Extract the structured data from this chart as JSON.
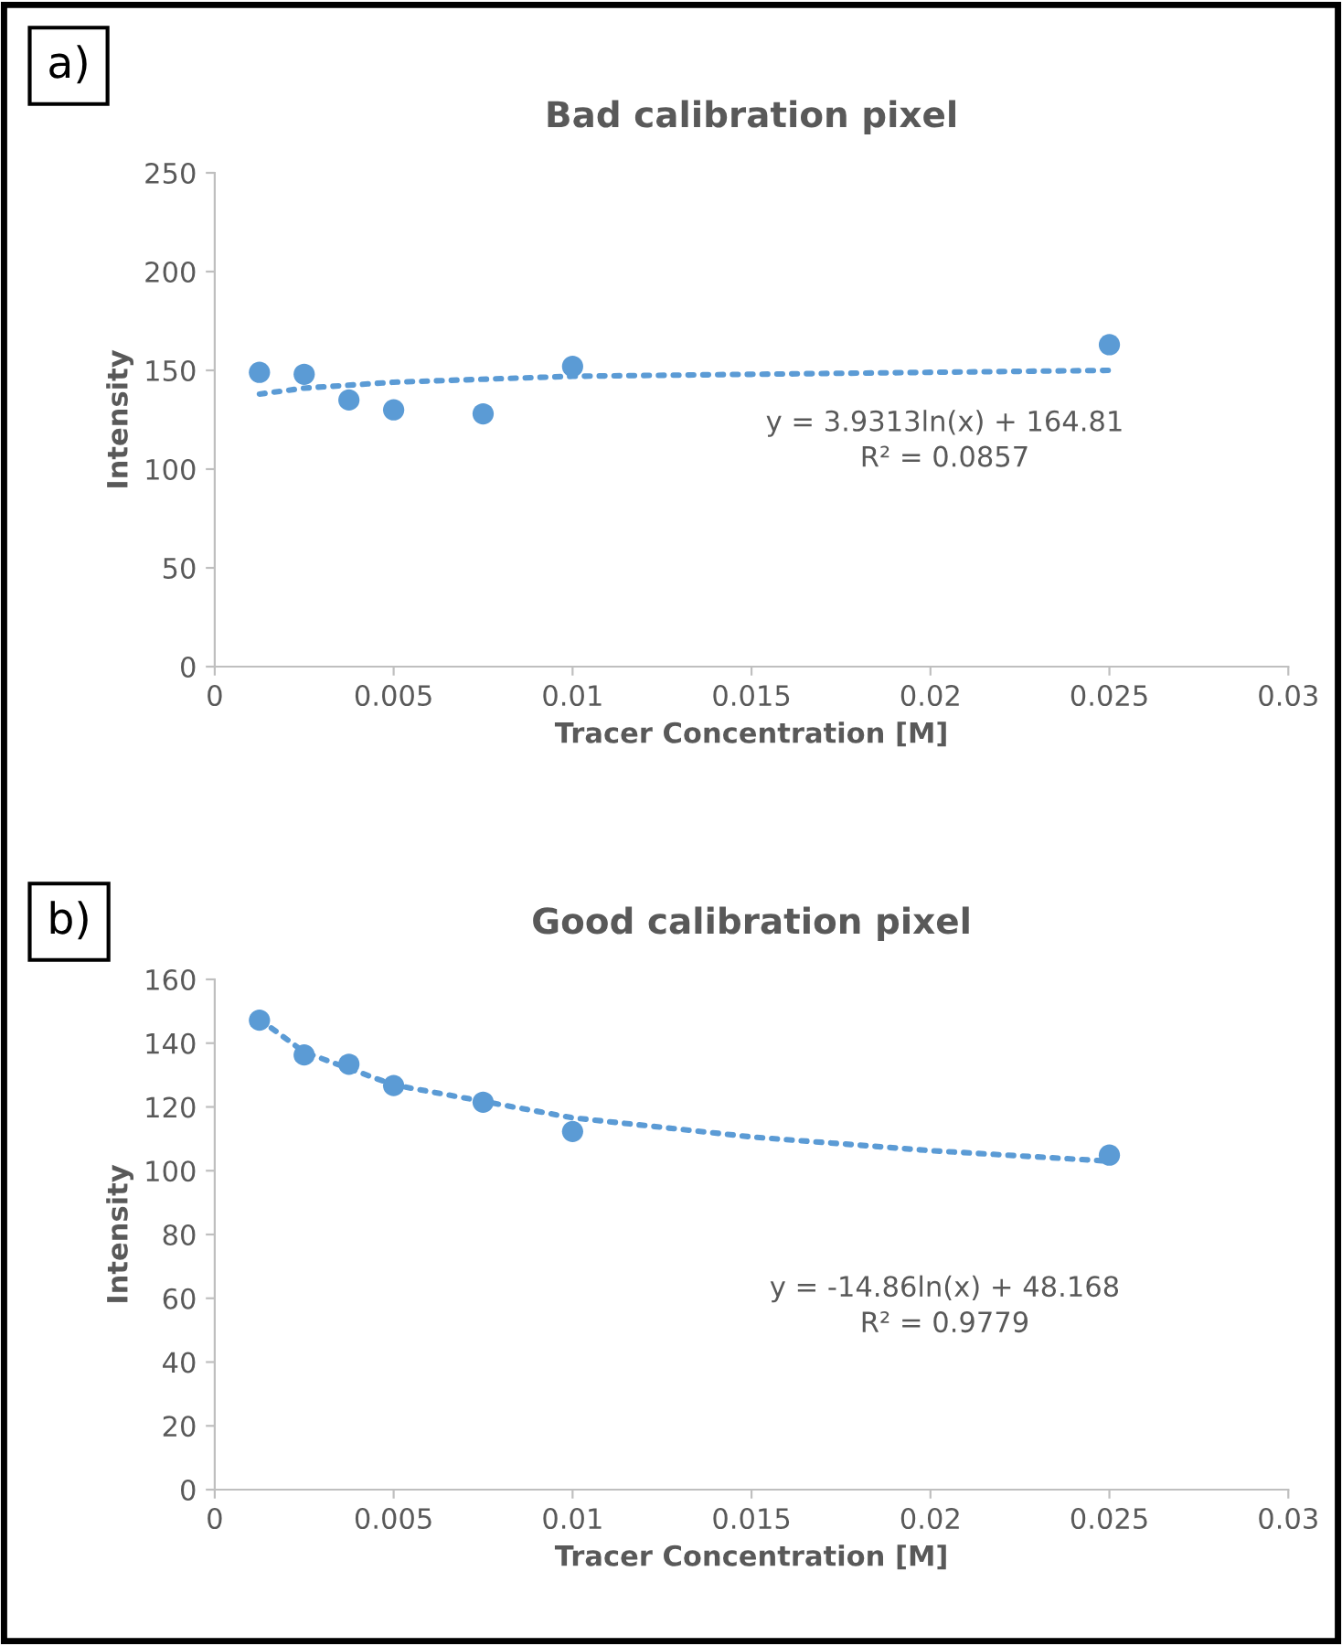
{
  "chart_data": [
    {
      "type": "scatter",
      "title": "Bad calibration pixel",
      "xlabel": "Tracer Concentration [M]",
      "ylabel": "Intensity",
      "annotations": [
        "a)",
        "y = 3.9313ln(x) + 164.81\nR² = 0.0857"
      ],
      "xlim": [
        0,
        0.03
      ],
      "xticks": [
        0,
        0.005,
        0.01,
        0.015,
        0.02,
        0.025,
        0.03
      ],
      "ylim": [
        0,
        250
      ],
      "yticks": [
        0,
        50,
        100,
        150,
        200,
        250
      ],
      "grid": false,
      "legend": false,
      "series": [
        {
          "color": "#5b9bd5",
          "marker": "circle",
          "x": [
            0.00125,
            0.0025,
            0.00375,
            0.005,
            0.0075,
            0.01,
            0.025
          ],
          "values": [
            149,
            148,
            135,
            130,
            128,
            152,
            163
          ]
        },
        {
          "type": "line",
          "color": "#5b9bd5",
          "line_style": "dotted",
          "marker": "none",
          "x": [
            0.00125,
            0.0025,
            0.005,
            0.01,
            0.015,
            0.02,
            0.025
          ],
          "values": [
            138,
            141,
            144,
            147,
            148,
            149,
            150
          ]
        }
      ]
    },
    {
      "type": "scatter",
      "title": "Good calibration pixel",
      "xlabel": "Tracer Concentration [M]",
      "ylabel": "Intensity",
      "annotations": [
        "b)",
        "y = -14.86ln(x) + 48.168\nR² = 0.9779"
      ],
      "xlim": [
        0,
        0.03
      ],
      "xticks": [
        0,
        0.005,
        0.01,
        0.015,
        0.02,
        0.025,
        0.03
      ],
      "ylim": [
        0,
        160
      ],
      "yticks": [
        0,
        20,
        40,
        60,
        80,
        100,
        120,
        140,
        160
      ],
      "grid": false,
      "legend": false,
      "series": [
        {
          "color": "#5b9bd5",
          "marker": "circle",
          "x": [
            0.00125,
            0.0025,
            0.00375,
            0.005,
            0.0075,
            0.01,
            0.025
          ],
          "values": [
            147.2,
            136.3,
            133.4,
            126.7,
            121.5,
            112.3,
            104.9
          ]
        },
        {
          "type": "line",
          "color": "#5b9bd5",
          "line_style": "dotted",
          "marker": "none",
          "x": [
            0.00125,
            0.0025,
            0.005,
            0.01,
            0.015,
            0.02,
            0.025
          ],
          "values": [
            147.5,
            137.2,
            126.9,
            116.6,
            110.6,
            106.3,
            103.0
          ]
        }
      ]
    }
  ]
}
